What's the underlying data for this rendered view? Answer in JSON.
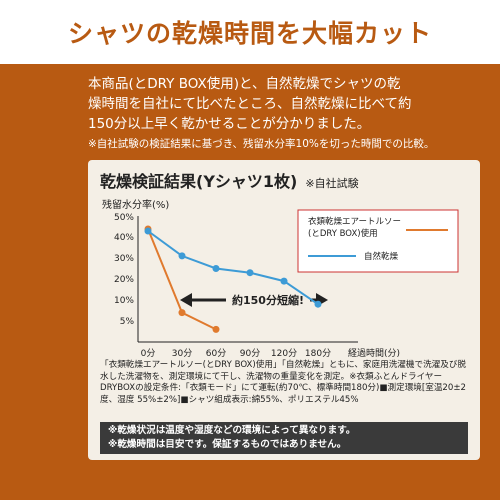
{
  "header": {
    "title": "シャツの乾燥時間を大幅カット"
  },
  "intro": {
    "line1": "本商品(とDRY BOX使用)と、自然乾燥でシャツの乾",
    "line2": "燥時間を自社にて比べたところ、自然乾燥に比べて約",
    "line3": "150分以上早く乾かせることが分かりました。",
    "note": "※自社試験の検証結果に基づき、残留水分率10%を切った時間での比較。"
  },
  "card": {
    "title": "乾燥検証結果(Yシャツ1枚)",
    "title_note": "※自社試験",
    "desc": "「衣類乾燥エアートルソー(とDRY BOX)使用」「自然乾燥」ともに、家庭用洗濯機で洗濯及び脱水した洗濯物を、測定環境にて干し、洗濯物の重量変化を測定。※衣類ふとんドライヤーDRYBOXの設定条件:「衣類モード」にて運転(約70℃、標準時間180分)■測定環境[室温20±2度、湿度 55%±2%]■シャツ組成表示:綿55%、ポリエステル45%"
  },
  "footer": {
    "line1": "※乾燥状況は温度や湿度などの環境によって異なります。",
    "line2": "※乾燥時間は目安です。保証するものではありません。"
  },
  "chart_data": {
    "type": "line",
    "ylabel": "残留水分率(%)",
    "xlabel": "経過時間(分)",
    "x_ticks": [
      "0分",
      "30分",
      "60分",
      "90分",
      "120分",
      "180分"
    ],
    "y_ticks": [
      "50%",
      "40%",
      "30%",
      "20%",
      "10%",
      "5%"
    ],
    "annotation": "約150分短縮!",
    "colors": {
      "orange": "#e07a2e",
      "blue": "#3d9bd6"
    },
    "series": [
      {
        "name": "衣類乾燥エアートルソー(とDRY BOX)使用",
        "color": "#e07a2e",
        "points": [
          {
            "x": "0分",
            "y": 44
          },
          {
            "x": "30分",
            "y": 7
          },
          {
            "x": "60分",
            "y": 3
          }
        ]
      },
      {
        "name": "自然乾燥",
        "color": "#3d9bd6",
        "points": [
          {
            "x": "0分",
            "y": 43
          },
          {
            "x": "30分",
            "y": 31
          },
          {
            "x": "60分",
            "y": 25
          },
          {
            "x": "90分",
            "y": 23
          },
          {
            "x": "120分",
            "y": 19
          },
          {
            "x": "180分",
            "y": 9
          }
        ]
      }
    ]
  }
}
